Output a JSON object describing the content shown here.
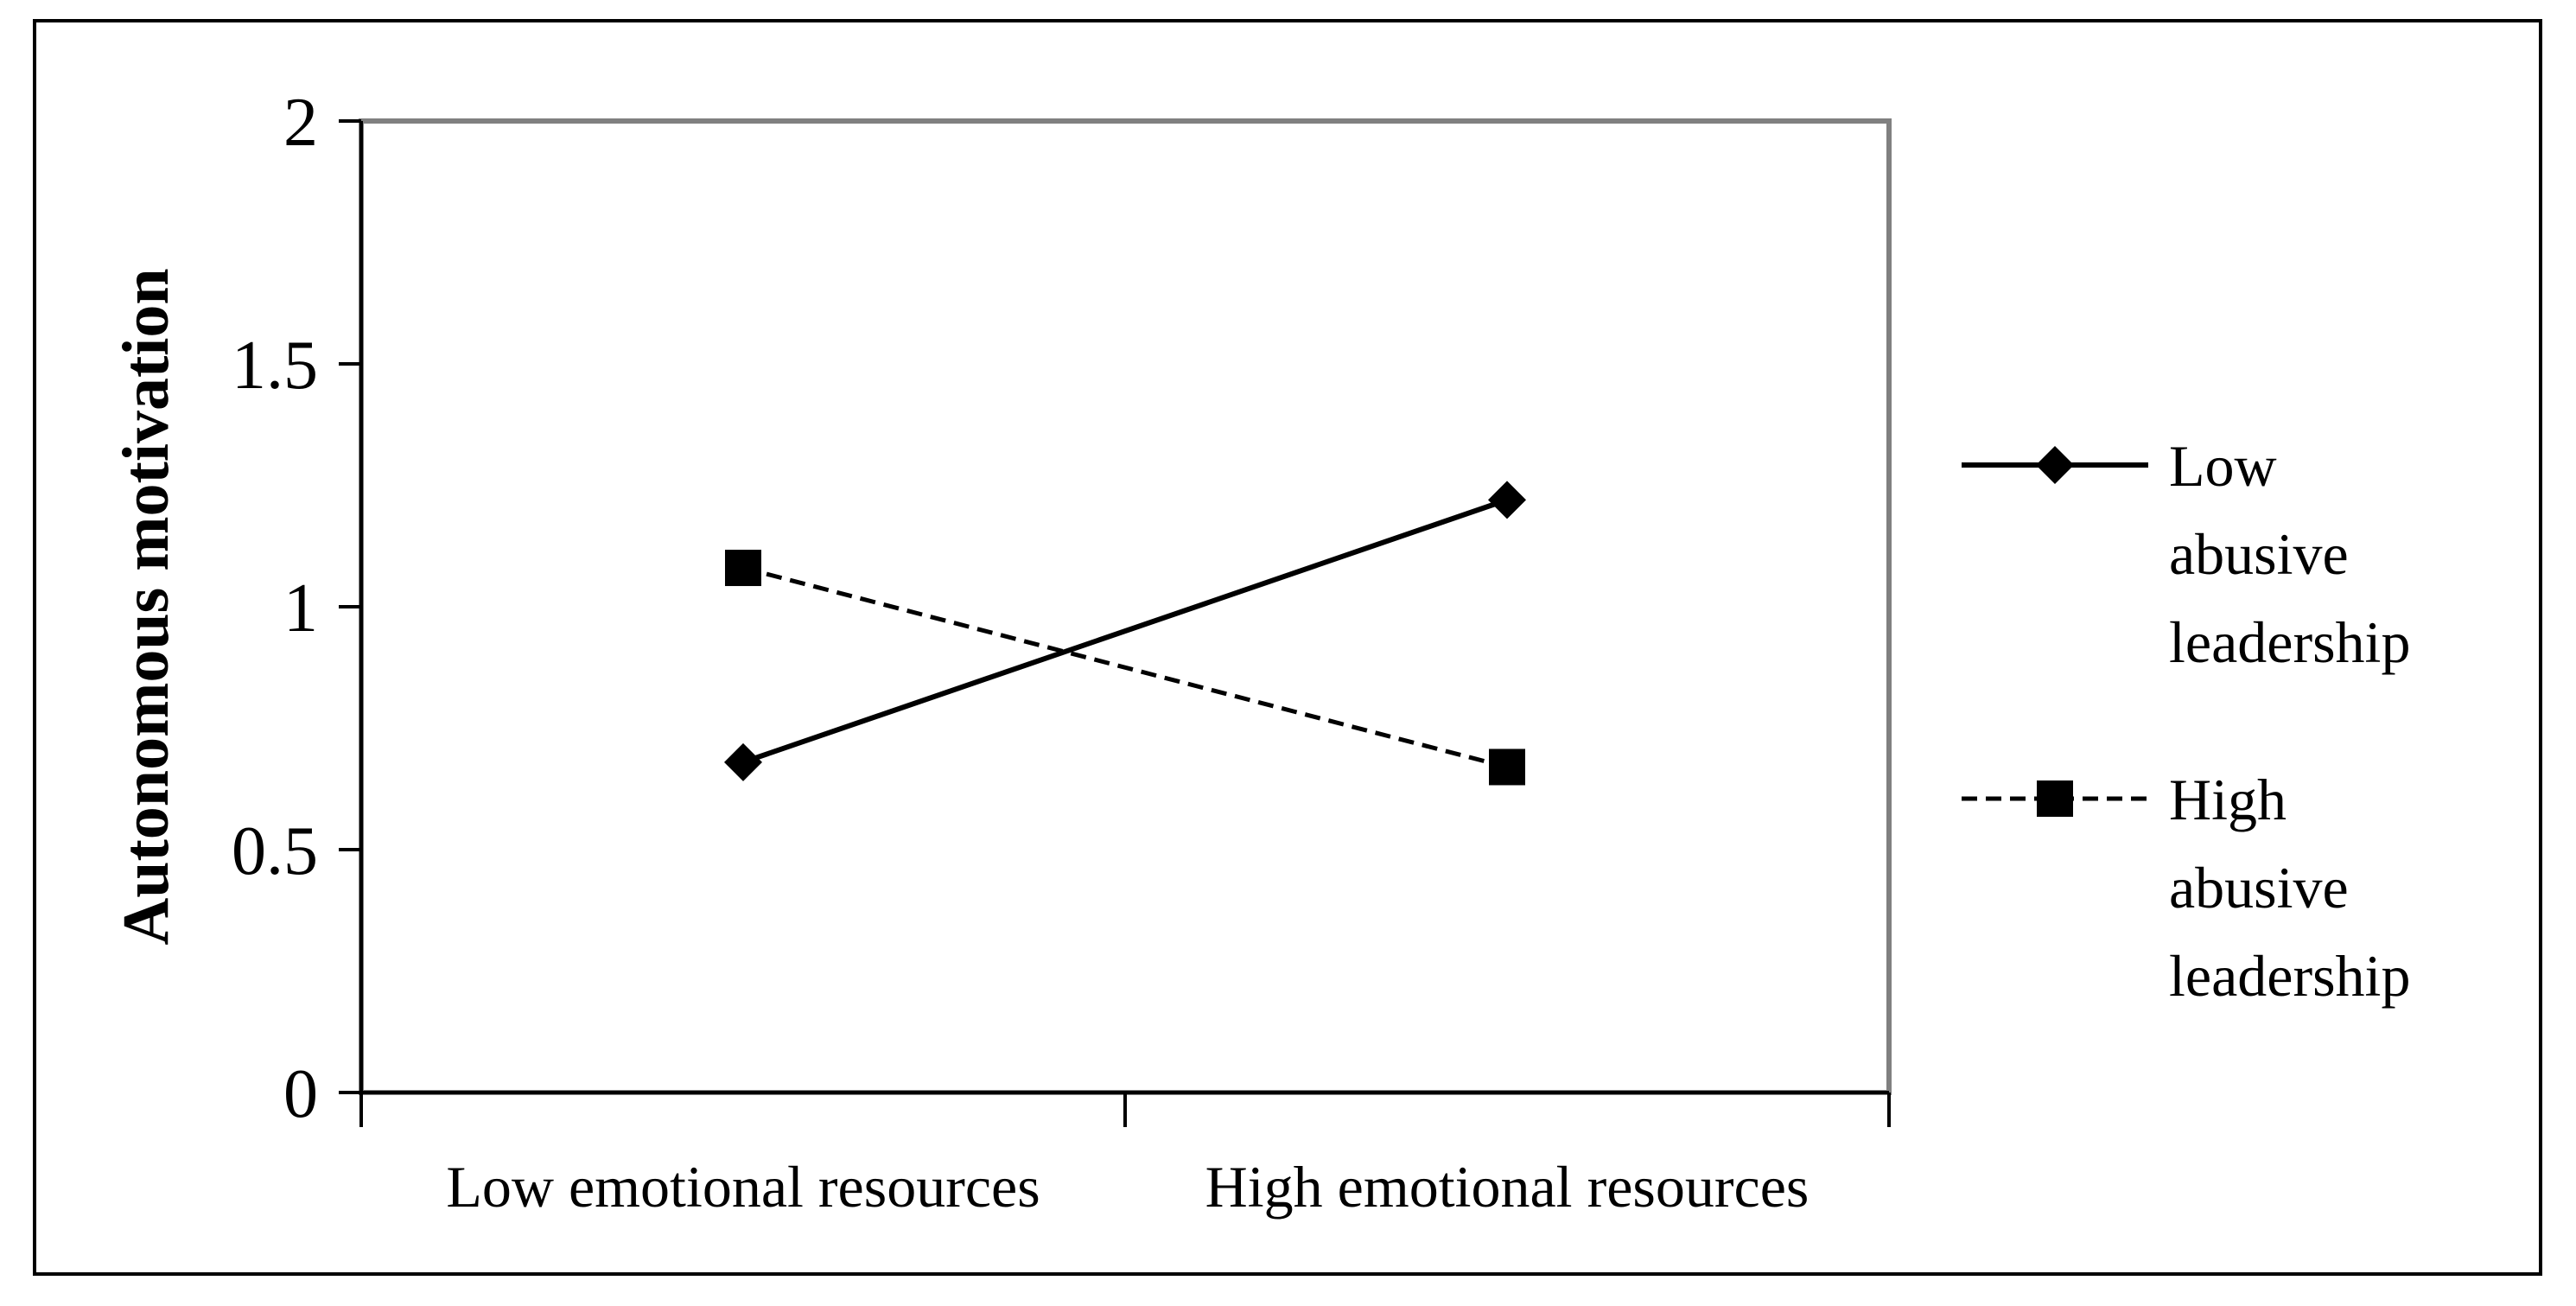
{
  "chart_data": {
    "type": "line",
    "title": "",
    "xlabel": "",
    "ylabel": "Autonomous motivation",
    "categories": [
      "Low emotional resources",
      "High emotional resources"
    ],
    "ylim": [
      0,
      2
    ],
    "yticks": [
      "0",
      "0.5",
      "1",
      "1.5",
      "2"
    ],
    "grid": false,
    "legend_position": "right",
    "series": [
      {
        "name": "Low abusive leadership",
        "legend_lines": [
          "Low",
          "abusive",
          "leadership"
        ],
        "values": [
          0.68,
          1.22
        ],
        "marker": "diamond",
        "line_style": "solid",
        "color": "#000000"
      },
      {
        "name": "High abusive leadership",
        "legend_lines": [
          "High",
          "abusive",
          "leadership"
        ],
        "values": [
          1.08,
          0.67
        ],
        "marker": "square",
        "line_style": "dashed",
        "color": "#000000"
      }
    ],
    "colors": {
      "plot_border": "#808080",
      "axis": "#000000",
      "frame": "#000000"
    }
  }
}
